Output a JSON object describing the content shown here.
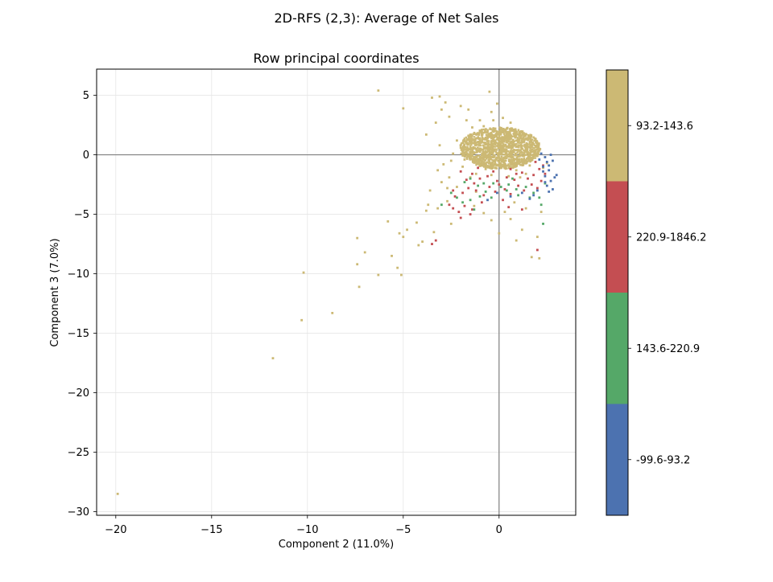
{
  "chart_data": {
    "type": "scatter",
    "suptitle": "2D-RFS (2,3): Average of Net Sales",
    "title": "Row principal coordinates",
    "xlabel": "Component 2 (11.0%)",
    "ylabel": "Component 3 (7.0%)",
    "xlim": [
      -21,
      4
    ],
    "ylim": [
      -30.3,
      7.2
    ],
    "xticks": [
      -20,
      -15,
      -10,
      -5,
      0
    ],
    "yticks": [
      5,
      0,
      -5,
      -10,
      -15,
      -20,
      -25,
      -30
    ],
    "xtick_labels": [
      "−20",
      "−15",
      "−10",
      "−5",
      "0"
    ],
    "ytick_labels": [
      "5",
      "0",
      "−5",
      "−10",
      "−15",
      "−20",
      "−25",
      "−30"
    ],
    "reference_lines": {
      "x": 0,
      "y": 0
    },
    "grid": true,
    "colors": {
      "low": "#4c72b0",
      "mid_low": "#55a868",
      "high": "#c44e52",
      "mid": "#ccb974",
      "axis_line": "#808080"
    },
    "colorbar": {
      "title": "Average of Net Sales",
      "categories": [
        {
          "label": "-99.6-93.2",
          "color": "#4c72b0"
        },
        {
          "label": "143.6-220.9",
          "color": "#55a868"
        },
        {
          "label": "220.9-1846.2",
          "color": "#c44e52"
        },
        {
          "label": "93.2-143.6",
          "color": "#ccb974"
        }
      ]
    },
    "series": [
      {
        "name": "93.2-143.6",
        "color": "#ccb974",
        "points": [
          [
            -19.9,
            -28.5
          ],
          [
            -11.8,
            -17.1
          ],
          [
            -10.3,
            -13.9
          ],
          [
            -10.2,
            -9.9
          ],
          [
            -8.7,
            -13.3
          ],
          [
            -7.3,
            -11.1
          ],
          [
            -7.4,
            -9.2
          ],
          [
            -7.4,
            -7.0
          ],
          [
            -7.0,
            -8.2
          ],
          [
            -6.3,
            -10.1
          ],
          [
            -5.6,
            -8.5
          ],
          [
            -5.3,
            -9.5
          ],
          [
            -5.1,
            -10.1
          ],
          [
            -5.8,
            -5.6
          ],
          [
            -5.2,
            -6.6
          ],
          [
            -5.0,
            -6.9
          ],
          [
            -4.8,
            -6.3
          ],
          [
            -4.2,
            -7.6
          ],
          [
            -4.3,
            -5.7
          ],
          [
            -4.0,
            -7.3
          ],
          [
            -3.8,
            -4.7
          ],
          [
            -3.7,
            -4.2
          ],
          [
            -3.4,
            -6.5
          ],
          [
            -3.2,
            -4.5
          ],
          [
            -2.7,
            -3.9
          ],
          [
            -3.6,
            -3.0
          ],
          [
            -2.5,
            -5.8
          ],
          [
            -6.3,
            5.4
          ],
          [
            -5.0,
            3.9
          ],
          [
            -3.5,
            4.8
          ],
          [
            -3.1,
            4.9
          ],
          [
            -2.8,
            4.4
          ],
          [
            -3.0,
            3.8
          ],
          [
            -2.6,
            3.2
          ],
          [
            -3.3,
            2.7
          ],
          [
            -2.0,
            4.1
          ],
          [
            -1.6,
            3.8
          ],
          [
            -0.5,
            5.3
          ],
          [
            -0.1,
            4.3
          ],
          [
            -0.4,
            3.6
          ],
          [
            -3.8,
            1.7
          ],
          [
            -3.1,
            0.8
          ],
          [
            -2.9,
            -0.8
          ],
          [
            -3.2,
            -1.3
          ],
          [
            -2.6,
            -1.9
          ],
          [
            -3.0,
            -2.3
          ],
          [
            -2.7,
            -2.8
          ],
          [
            -0.8,
            -4.9
          ],
          [
            -1.3,
            -4.3
          ],
          [
            -0.4,
            -5.5
          ],
          [
            0.0,
            -6.6
          ],
          [
            0.6,
            -5.4
          ],
          [
            1.2,
            -6.3
          ],
          [
            0.9,
            -7.2
          ],
          [
            1.7,
            -8.6
          ],
          [
            2.1,
            -8.7
          ],
          [
            2.0,
            -6.9
          ],
          [
            1.4,
            -4.5
          ],
          [
            2.2,
            -4.8
          ],
          [
            0.8,
            -4.0
          ],
          [
            0.3,
            -4.8
          ],
          [
            -1.2,
            -3.1
          ],
          [
            -2.2,
            -2.7
          ],
          [
            -2.0,
            0.6
          ],
          [
            -1.5,
            1.0
          ],
          [
            -1.0,
            0.8
          ],
          [
            -0.5,
            0.5
          ],
          [
            0.0,
            0.7
          ],
          [
            0.5,
            0.6
          ],
          [
            1.0,
            0.4
          ],
          [
            1.5,
            0.2
          ],
          [
            -1.8,
            -0.4
          ],
          [
            -1.3,
            -0.2
          ],
          [
            -0.8,
            -0.3
          ],
          [
            -0.3,
            -0.2
          ],
          [
            0.2,
            -0.3
          ],
          [
            0.7,
            -0.2
          ],
          [
            1.2,
            -0.4
          ],
          [
            -1.6,
            1.6
          ],
          [
            -1.1,
            1.8
          ],
          [
            -0.6,
            1.5
          ],
          [
            -0.1,
            1.7
          ],
          [
            0.4,
            1.4
          ],
          [
            0.9,
            1.2
          ],
          [
            -1.4,
            2.3
          ],
          [
            -0.8,
            2.4
          ],
          [
            -0.2,
            2.2
          ],
          [
            0.3,
            2.1
          ],
          [
            -2.2,
            1.2
          ],
          [
            1.8,
            0.9
          ],
          [
            -1.9,
            -1.0
          ],
          [
            1.6,
            -0.9
          ],
          [
            -2.4,
            0.1
          ],
          [
            2.0,
            -0.1
          ],
          [
            -0.7,
            -1.2
          ],
          [
            0.1,
            -1.1
          ],
          [
            0.9,
            -1.3
          ],
          [
            -1.2,
            -1.6
          ],
          [
            1.4,
            -1.6
          ],
          [
            -0.3,
            2.9
          ],
          [
            0.6,
            2.7
          ],
          [
            -1.0,
            2.9
          ],
          [
            2.3,
            -1.1
          ],
          [
            2.5,
            -0.7
          ],
          [
            -1.7,
            2.9
          ],
          [
            0.2,
            3.1
          ],
          [
            -2.5,
            -0.5
          ],
          [
            -1.5,
            -1.9
          ],
          [
            1.1,
            -1.9
          ],
          [
            -0.4,
            -1.7
          ],
          [
            0.5,
            -1.8
          ]
        ]
      },
      {
        "name": "220.9-1846.2",
        "color": "#c44e52",
        "points": [
          [
            -3.5,
            -7.5
          ],
          [
            -3.3,
            -7.2
          ],
          [
            -2.0,
            -5.3
          ],
          [
            -1.5,
            -5.0
          ],
          [
            -2.4,
            -4.5
          ],
          [
            -2.1,
            -4.8
          ],
          [
            -1.8,
            -4.3
          ],
          [
            -1.4,
            -4.6
          ],
          [
            -2.6,
            -4.2
          ],
          [
            -2.3,
            -3.5
          ],
          [
            -1.9,
            -3.2
          ],
          [
            -1.6,
            -2.8
          ],
          [
            -1.2,
            -3.0
          ],
          [
            -0.8,
            -3.4
          ],
          [
            -0.5,
            -2.7
          ],
          [
            -0.2,
            -3.1
          ],
          [
            0.3,
            -2.9
          ],
          [
            0.6,
            -3.3
          ],
          [
            1.0,
            -2.6
          ],
          [
            1.3,
            -3.0
          ],
          [
            1.7,
            -2.5
          ],
          [
            2.0,
            -2.8
          ],
          [
            2.2,
            -2.2
          ],
          [
            2.4,
            -1.6
          ],
          [
            2.1,
            -1.2
          ],
          [
            1.8,
            -1.7
          ],
          [
            1.5,
            -2.0
          ],
          [
            -1.4,
            -1.6
          ],
          [
            -1.0,
            -2.0
          ],
          [
            -0.6,
            -1.8
          ],
          [
            -0.1,
            -2.2
          ],
          [
            0.4,
            -1.9
          ],
          [
            0.8,
            -2.1
          ],
          [
            1.2,
            -1.5
          ],
          [
            -1.7,
            -2.1
          ],
          [
            -2.0,
            -1.4
          ],
          [
            -1.1,
            -1.1
          ],
          [
            -0.3,
            -1.4
          ],
          [
            0.6,
            -1.2
          ],
          [
            -0.9,
            -4.0
          ],
          [
            0.2,
            -3.8
          ],
          [
            2.0,
            -8.0
          ],
          [
            1.2,
            -4.6
          ],
          [
            0.5,
            -4.4
          ],
          [
            -2.4,
            -3.0
          ],
          [
            2.3,
            -0.9
          ],
          [
            1.9,
            -0.6
          ],
          [
            -1.3,
            -2.4
          ],
          [
            0.0,
            -2.5
          ],
          [
            0.9,
            -1.6
          ]
        ]
      },
      {
        "name": "143.6-220.9",
        "color": "#55a868",
        "points": [
          [
            -3.0,
            -4.2
          ],
          [
            -2.2,
            -3.6
          ],
          [
            -1.9,
            -4.0
          ],
          [
            -1.5,
            -3.8
          ],
          [
            -1.1,
            -2.6
          ],
          [
            -0.7,
            -3.1
          ],
          [
            -0.3,
            -2.4
          ],
          [
            0.1,
            -2.7
          ],
          [
            0.5,
            -2.5
          ],
          [
            0.9,
            -2.9
          ],
          [
            1.4,
            -2.7
          ],
          [
            1.8,
            -3.2
          ],
          [
            2.1,
            -3.6
          ],
          [
            2.3,
            -5.8
          ],
          [
            2.2,
            -4.2
          ],
          [
            1.6,
            -3.6
          ],
          [
            -1.8,
            -2.3
          ],
          [
            -1.5,
            -2.0
          ],
          [
            -1.0,
            -3.5
          ],
          [
            -0.4,
            -3.6
          ],
          [
            0.4,
            -3.0
          ],
          [
            1.0,
            -3.4
          ],
          [
            -2.5,
            -3.2
          ],
          [
            2.4,
            -2.4
          ],
          [
            -1.3,
            -4.6
          ],
          [
            -0.8,
            -2.4
          ],
          [
            0.7,
            -2.0
          ]
        ]
      },
      {
        "name": "-99.6-93.2",
        "color": "#4c72b0",
        "points": [
          [
            2.2,
            0.1
          ],
          [
            2.4,
            -0.2
          ],
          [
            2.5,
            -0.6
          ],
          [
            2.3,
            -1.0
          ],
          [
            2.6,
            -1.3
          ],
          [
            2.4,
            -1.8
          ],
          [
            2.7,
            -2.2
          ],
          [
            2.5,
            -2.6
          ],
          [
            2.8,
            -2.9
          ],
          [
            2.6,
            -3.1
          ],
          [
            2.9,
            -1.9
          ],
          [
            3.0,
            -1.7
          ],
          [
            2.8,
            -0.5
          ],
          [
            2.7,
            0.0
          ],
          [
            2.1,
            -0.4
          ],
          [
            2.3,
            -1.4
          ],
          [
            2.0,
            -3.0
          ],
          [
            1.8,
            -3.4
          ],
          [
            1.6,
            -3.7
          ],
          [
            1.2,
            -3.2
          ],
          [
            0.6,
            -3.5
          ],
          [
            -0.1,
            -3.2
          ],
          [
            -0.6,
            -3.8
          ],
          [
            2.6,
            -0.9
          ],
          [
            2.4,
            -2.3
          ]
        ]
      }
    ]
  }
}
